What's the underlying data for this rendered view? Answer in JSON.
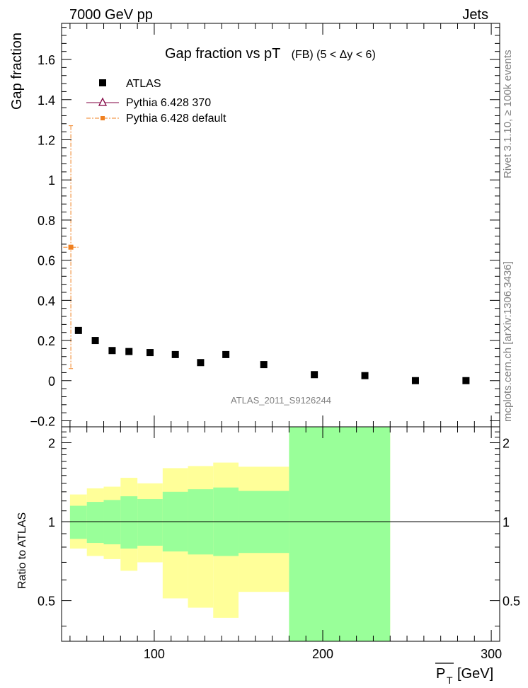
{
  "header": {
    "energy": "7000 GeV pp",
    "process": "Jets",
    "side_rivet": "Rivet 3.1.10, ≥ 100k events",
    "side_mcplots": "mcplots.cern.ch [arXiv:1306.3436]",
    "analysis_id": "ATLAS_2011_S9126244"
  },
  "colors": {
    "atlas": "#000000",
    "pythia_370": "#800040",
    "pythia_default": "#f08020",
    "band_stat": "#99ff99",
    "band_total": "#ffff99"
  },
  "chart_data": [
    {
      "type": "scatter",
      "title": "Gap fraction vs pT",
      "title_qualifier": "(FB) (5 < Δy < 6)",
      "xlabel": "",
      "ylabel": "Gap fraction",
      "xlim": [
        45,
        305
      ],
      "ylim": [
        -0.23,
        1.78
      ],
      "yticks": [
        -0.2,
        0,
        0.2,
        0.4,
        0.6,
        0.8,
        1,
        1.2,
        1.4,
        1.6
      ],
      "ytick_labels": [
        "−0.2",
        "0",
        "0.2",
        "0.4",
        "0.6",
        "0.8",
        "1",
        "1.2",
        "1.4",
        "1.6"
      ],
      "legend": [
        {
          "name": "ATLAS",
          "marker": "square"
        },
        {
          "name": "Pythia 6.428 370",
          "marker": "triangle"
        },
        {
          "name": "Pythia 6.428 default",
          "marker": "small-square"
        }
      ],
      "series": [
        {
          "name": "ATLAS",
          "points": [
            {
              "x": 55,
              "y": 0.25
            },
            {
              "x": 65,
              "y": 0.2
            },
            {
              "x": 75,
              "y": 0.15
            },
            {
              "x": 85,
              "y": 0.145
            },
            {
              "x": 97.5,
              "y": 0.14
            },
            {
              "x": 112.5,
              "y": 0.13
            },
            {
              "x": 127.5,
              "y": 0.09
            },
            {
              "x": 142.5,
              "y": 0.13
            },
            {
              "x": 165,
              "y": 0.08
            },
            {
              "x": 195,
              "y": 0.03
            },
            {
              "x": 225,
              "y": 0.025
            },
            {
              "x": 255,
              "y": 0.0
            },
            {
              "x": 285,
              "y": 0.0
            }
          ]
        },
        {
          "name": "Pythia 6.428 default",
          "points": [
            {
              "x": 50.5,
              "y": 0.665,
              "ylow": 0.06,
              "yhigh": 1.27,
              "xlow": 46,
              "xhigh": 55
            }
          ]
        },
        {
          "name": "Pythia 6.428 370",
          "points": []
        }
      ]
    },
    {
      "type": "area",
      "title": "",
      "xlabel": "P_T [GeV]",
      "xlabel_main": "P",
      "xlabel_sub": "T",
      "xlabel_unit": "[GeV]",
      "ylabel": "Ratio to ATLAS",
      "xlim": [
        45,
        305
      ],
      "ylim": [
        0.35,
        2.3
      ],
      "yscale": "log",
      "yticks": [
        0.5,
        1,
        2
      ],
      "ytick_labels": [
        "0.5",
        "1",
        "2"
      ],
      "xticks": [
        100,
        200,
        300
      ],
      "xtick_labels": [
        "100",
        "200",
        "300"
      ],
      "reference": 1,
      "bins": [
        {
          "x_low": 50,
          "x_high": 60,
          "stat_low": 0.86,
          "stat_high": 1.15,
          "tot_low": 0.79,
          "tot_high": 1.27
        },
        {
          "x_low": 60,
          "x_high": 70,
          "stat_low": 0.83,
          "stat_high": 1.19,
          "tot_low": 0.74,
          "tot_high": 1.34
        },
        {
          "x_low": 70,
          "x_high": 80,
          "stat_low": 0.82,
          "stat_high": 1.21,
          "tot_low": 0.72,
          "tot_high": 1.36
        },
        {
          "x_low": 80,
          "x_high": 90,
          "stat_low": 0.79,
          "stat_high": 1.25,
          "tot_low": 0.65,
          "tot_high": 1.47
        },
        {
          "x_low": 90,
          "x_high": 105,
          "stat_low": 0.81,
          "stat_high": 1.22,
          "tot_low": 0.7,
          "tot_high": 1.4
        },
        {
          "x_low": 105,
          "x_high": 120,
          "stat_low": 0.77,
          "stat_high": 1.3,
          "tot_low": 0.51,
          "tot_high": 1.6
        },
        {
          "x_low": 120,
          "x_high": 135,
          "stat_low": 0.75,
          "stat_high": 1.33,
          "tot_low": 0.47,
          "tot_high": 1.63
        },
        {
          "x_low": 135,
          "x_high": 150,
          "stat_low": 0.74,
          "stat_high": 1.35,
          "tot_low": 0.43,
          "tot_high": 1.68
        },
        {
          "x_low": 150,
          "x_high": 180,
          "stat_low": 0.76,
          "stat_high": 1.31,
          "tot_low": 0.54,
          "tot_high": 1.62
        },
        {
          "x_low": 180,
          "x_high": 240,
          "stat_low": 0.3,
          "stat_high": 2.5,
          "tot_low": 0.3,
          "tot_high": 2.5
        }
      ]
    }
  ]
}
